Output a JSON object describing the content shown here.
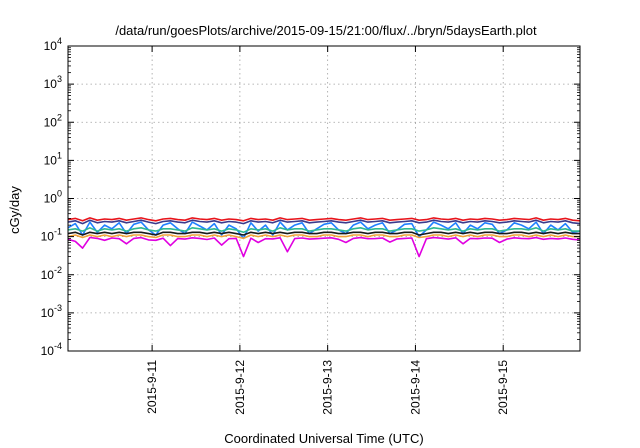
{
  "chart_data": {
    "type": "line",
    "title": "/data/run/goesPlots/archive/2015-09-15/21:00/flux/../bryn/5daysEarth.plot",
    "xlabel": "Coordinated Universal Time (UTC)",
    "ylabel": "cGy/day",
    "y_scale": "log",
    "ylim": [
      0.0001,
      10000
    ],
    "y_ticks": [
      {
        "value": 0.0001,
        "base": "10",
        "exp": "-4"
      },
      {
        "value": 0.001,
        "base": "10",
        "exp": "-3"
      },
      {
        "value": 0.01,
        "base": "10",
        "exp": "-2"
      },
      {
        "value": 0.1,
        "base": "10",
        "exp": "-1"
      },
      {
        "value": 1,
        "base": "10",
        "exp": "0"
      },
      {
        "value": 10,
        "base": "10",
        "exp": "1"
      },
      {
        "value": 100,
        "base": "10",
        "exp": "2"
      },
      {
        "value": 1000,
        "base": "10",
        "exp": "3"
      },
      {
        "value": 10000,
        "base": "10",
        "exp": "4"
      }
    ],
    "xlim": [
      "2015-09-10 01:00",
      "2015-09-15 21:00"
    ],
    "x_ticks": [
      "2015-9-11",
      "2015-9-12",
      "2015-9-13",
      "2015-9-14",
      "2015-9-15"
    ],
    "grid": true,
    "x": [
      "2015-09-10 01:00",
      "2015-09-10 03:00",
      "2015-09-10 05:00",
      "2015-09-10 07:00",
      "2015-09-10 09:00",
      "2015-09-10 11:00",
      "2015-09-10 13:00",
      "2015-09-10 15:00",
      "2015-09-10 17:00",
      "2015-09-10 19:00",
      "2015-09-10 21:00",
      "2015-09-10 23:00",
      "2015-09-11 01:00",
      "2015-09-11 03:00",
      "2015-09-11 05:00",
      "2015-09-11 07:00",
      "2015-09-11 09:00",
      "2015-09-11 11:00",
      "2015-09-11 13:00",
      "2015-09-11 15:00",
      "2015-09-11 17:00",
      "2015-09-11 19:00",
      "2015-09-11 21:00",
      "2015-09-11 23:00",
      "2015-09-12 01:00",
      "2015-09-12 03:00",
      "2015-09-12 05:00",
      "2015-09-12 07:00",
      "2015-09-12 09:00",
      "2015-09-12 11:00",
      "2015-09-12 13:00",
      "2015-09-12 15:00",
      "2015-09-12 17:00",
      "2015-09-12 19:00",
      "2015-09-12 21:00",
      "2015-09-12 23:00",
      "2015-09-13 01:00",
      "2015-09-13 03:00",
      "2015-09-13 05:00",
      "2015-09-13 07:00",
      "2015-09-13 09:00",
      "2015-09-13 11:00",
      "2015-09-13 13:00",
      "2015-09-13 15:00",
      "2015-09-13 17:00",
      "2015-09-13 19:00",
      "2015-09-13 21:00",
      "2015-09-13 23:00",
      "2015-09-14 01:00",
      "2015-09-14 03:00",
      "2015-09-14 05:00",
      "2015-09-14 07:00",
      "2015-09-14 09:00",
      "2015-09-14 11:00",
      "2015-09-14 13:00",
      "2015-09-14 15:00",
      "2015-09-14 17:00",
      "2015-09-14 19:00",
      "2015-09-14 21:00",
      "2015-09-14 23:00",
      "2015-09-15 01:00",
      "2015-09-15 03:00",
      "2015-09-15 05:00",
      "2015-09-15 07:00",
      "2015-09-15 09:00",
      "2015-09-15 11:00",
      "2015-09-15 13:00",
      "2015-09-15 15:00",
      "2015-09-15 17:00",
      "2015-09-15 19:00",
      "2015-09-15 21:00"
    ],
    "series": [
      {
        "color": "#e8141b",
        "values": [
          0.28,
          0.3,
          0.26,
          0.31,
          0.27,
          0.29,
          0.28,
          0.3,
          0.27,
          0.29,
          0.31,
          0.28,
          0.26,
          0.29,
          0.3,
          0.28,
          0.27,
          0.31,
          0.29,
          0.28,
          0.3,
          0.27,
          0.29,
          0.28,
          0.26,
          0.3,
          0.28,
          0.29,
          0.27,
          0.31,
          0.28,
          0.29,
          0.3,
          0.27,
          0.28,
          0.29,
          0.3,
          0.28,
          0.27,
          0.29,
          0.31,
          0.28,
          0.29,
          0.3,
          0.27,
          0.28,
          0.29,
          0.3,
          0.27,
          0.28,
          0.31,
          0.29,
          0.28,
          0.3,
          0.27,
          0.29,
          0.28,
          0.3,
          0.29,
          0.27,
          0.28,
          0.3,
          0.29,
          0.28,
          0.31,
          0.27,
          0.29,
          0.28,
          0.3,
          0.27,
          0.26
        ]
      },
      {
        "color": "#3a3a8c",
        "values": [
          0.24,
          0.26,
          0.22,
          0.27,
          0.23,
          0.25,
          0.24,
          0.26,
          0.23,
          0.25,
          0.27,
          0.24,
          0.22,
          0.25,
          0.26,
          0.24,
          0.23,
          0.27,
          0.25,
          0.24,
          0.26,
          0.23,
          0.25,
          0.24,
          0.22,
          0.26,
          0.24,
          0.25,
          0.23,
          0.27,
          0.24,
          0.25,
          0.26,
          0.23,
          0.24,
          0.25,
          0.26,
          0.24,
          0.23,
          0.25,
          0.27,
          0.24,
          0.25,
          0.26,
          0.23,
          0.24,
          0.25,
          0.26,
          0.23,
          0.24,
          0.27,
          0.25,
          0.24,
          0.26,
          0.23,
          0.25,
          0.24,
          0.26,
          0.25,
          0.23,
          0.24,
          0.26,
          0.25,
          0.24,
          0.27,
          0.23,
          0.25,
          0.24,
          0.26,
          0.23,
          0.22
        ]
      },
      {
        "color": "#2080ff",
        "values": [
          0.17,
          0.22,
          0.11,
          0.24,
          0.13,
          0.2,
          0.16,
          0.23,
          0.12,
          0.21,
          0.24,
          0.15,
          0.11,
          0.2,
          0.23,
          0.16,
          0.12,
          0.24,
          0.19,
          0.15,
          0.22,
          0.11,
          0.2,
          0.16,
          0.09,
          0.23,
          0.14,
          0.2,
          0.11,
          0.24,
          0.15,
          0.2,
          0.23,
          0.12,
          0.16,
          0.21,
          0.23,
          0.15,
          0.12,
          0.2,
          0.24,
          0.16,
          0.2,
          0.23,
          0.12,
          0.15,
          0.21,
          0.22,
          0.1,
          0.15,
          0.24,
          0.2,
          0.16,
          0.23,
          0.12,
          0.2,
          0.16,
          0.23,
          0.21,
          0.12,
          0.15,
          0.23,
          0.2,
          0.16,
          0.24,
          0.12,
          0.2,
          0.15,
          0.22,
          0.13,
          0.14
        ]
      },
      {
        "color": "#2fb892",
        "values": [
          0.15,
          0.16,
          0.14,
          0.17,
          0.14,
          0.16,
          0.15,
          0.16,
          0.14,
          0.16,
          0.17,
          0.15,
          0.14,
          0.16,
          0.16,
          0.15,
          0.14,
          0.17,
          0.16,
          0.15,
          0.16,
          0.14,
          0.16,
          0.15,
          0.13,
          0.16,
          0.15,
          0.16,
          0.14,
          0.17,
          0.15,
          0.16,
          0.16,
          0.14,
          0.15,
          0.16,
          0.16,
          0.15,
          0.14,
          0.16,
          0.17,
          0.15,
          0.16,
          0.16,
          0.14,
          0.15,
          0.16,
          0.16,
          0.14,
          0.15,
          0.17,
          0.16,
          0.15,
          0.16,
          0.14,
          0.16,
          0.15,
          0.16,
          0.16,
          0.14,
          0.15,
          0.16,
          0.16,
          0.15,
          0.17,
          0.14,
          0.16,
          0.15,
          0.16,
          0.14,
          0.14
        ]
      },
      {
        "color": "#1a1a1a",
        "values": [
          0.12,
          0.13,
          0.11,
          0.13,
          0.12,
          0.13,
          0.12,
          0.13,
          0.12,
          0.13,
          0.13,
          0.12,
          0.11,
          0.13,
          0.13,
          0.12,
          0.12,
          0.13,
          0.13,
          0.12,
          0.13,
          0.12,
          0.13,
          0.12,
          0.11,
          0.13,
          0.12,
          0.13,
          0.12,
          0.13,
          0.12,
          0.13,
          0.13,
          0.12,
          0.12,
          0.13,
          0.13,
          0.12,
          0.12,
          0.13,
          0.13,
          0.12,
          0.13,
          0.13,
          0.12,
          0.12,
          0.13,
          0.13,
          0.11,
          0.12,
          0.13,
          0.13,
          0.12,
          0.13,
          0.12,
          0.13,
          0.12,
          0.13,
          0.13,
          0.12,
          0.12,
          0.13,
          0.13,
          0.12,
          0.13,
          0.12,
          0.13,
          0.12,
          0.13,
          0.12,
          0.12
        ]
      },
      {
        "color": "#f2a33a",
        "values": [
          0.1,
          0.11,
          0.095,
          0.11,
          0.1,
          0.11,
          0.1,
          0.11,
          0.1,
          0.11,
          0.11,
          0.1,
          0.095,
          0.11,
          0.11,
          0.1,
          0.1,
          0.11,
          0.11,
          0.1,
          0.11,
          0.1,
          0.11,
          0.1,
          0.09,
          0.11,
          0.1,
          0.11,
          0.1,
          0.11,
          0.1,
          0.11,
          0.11,
          0.1,
          0.1,
          0.11,
          0.11,
          0.1,
          0.1,
          0.11,
          0.11,
          0.1,
          0.11,
          0.11,
          0.1,
          0.1,
          0.11,
          0.11,
          0.095,
          0.1,
          0.11,
          0.11,
          0.1,
          0.11,
          0.1,
          0.11,
          0.1,
          0.11,
          0.11,
          0.1,
          0.1,
          0.11,
          0.11,
          0.1,
          0.11,
          0.1,
          0.11,
          0.1,
          0.11,
          0.1,
          0.1
        ]
      },
      {
        "color": "#e000e0",
        "values": [
          0.085,
          0.075,
          0.05,
          0.095,
          0.09,
          0.08,
          0.092,
          0.088,
          0.065,
          0.09,
          0.094,
          0.082,
          0.08,
          0.091,
          0.058,
          0.089,
          0.086,
          0.093,
          0.09,
          0.084,
          0.092,
          0.06,
          0.088,
          0.09,
          0.03,
          0.091,
          0.07,
          0.088,
          0.087,
          0.093,
          0.04,
          0.089,
          0.092,
          0.086,
          0.088,
          0.091,
          0.093,
          0.085,
          0.07,
          0.09,
          0.094,
          0.088,
          0.089,
          0.092,
          0.072,
          0.087,
          0.09,
          0.092,
          0.03,
          0.088,
          0.094,
          0.091,
          0.086,
          0.093,
          0.065,
          0.09,
          0.088,
          0.092,
          0.091,
          0.07,
          0.086,
          0.093,
          0.09,
          0.088,
          0.094,
          0.085,
          0.09,
          0.087,
          0.092,
          0.085,
          0.082
        ]
      }
    ]
  }
}
